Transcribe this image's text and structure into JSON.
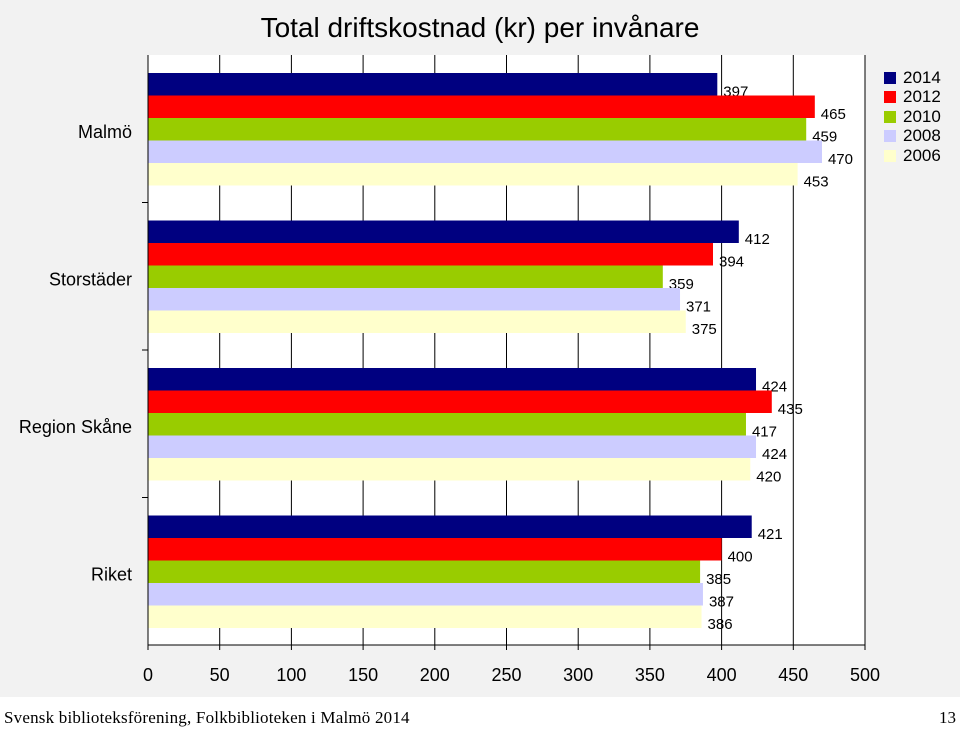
{
  "chart_data": {
    "type": "bar",
    "orientation": "horizontal",
    "title": "Total driftskostnad (kr) per invånare",
    "categories": [
      "Malmö",
      "Storstäder",
      "Region Skåne",
      "Riket"
    ],
    "series": [
      {
        "name": "2014",
        "color": "#000080",
        "values": [
          397,
          412,
          424,
          421
        ]
      },
      {
        "name": "2012",
        "color": "#ff0000",
        "values": [
          465,
          394,
          435,
          400
        ]
      },
      {
        "name": "2010",
        "color": "#99cc00",
        "values": [
          459,
          359,
          417,
          385
        ]
      },
      {
        "name": "2008",
        "color": "#ccccff",
        "values": [
          470,
          371,
          424,
          387
        ]
      },
      {
        "name": "2006",
        "color": "#ffffcc",
        "values": [
          453,
          375,
          420,
          386
        ]
      }
    ],
    "xlim": [
      0,
      500
    ],
    "x_ticks": [
      "0",
      "50",
      "100",
      "150",
      "200",
      "250",
      "300",
      "350",
      "400",
      "450",
      "500"
    ],
    "legend_position": "right",
    "grid": "vertical"
  },
  "footer": {
    "source": "Svensk biblioteksförening, Folkbiblioteken i Malmö 2014",
    "page_number": "13"
  }
}
